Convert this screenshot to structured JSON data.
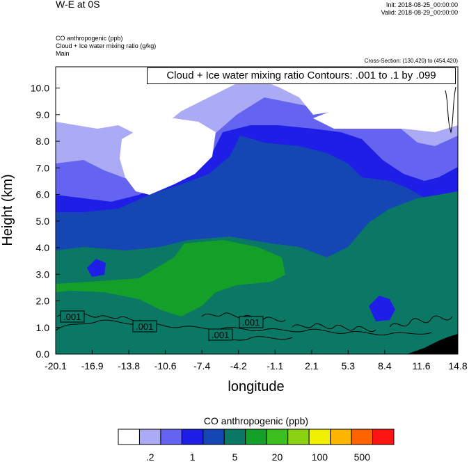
{
  "header": {
    "title": "W-E at 0S",
    "init": "Init: 2018-08-25_00:00:00",
    "valid": "Valid: 2018-08-29_00:00:00",
    "field1": "CO anthropogenic   (ppb)",
    "field2": "Cloud + Ice water mixing ratio   (g/kg)",
    "field3": "Main",
    "cross_section": "Cross-Section: (130,420) to (454,420)",
    "contour_label": "Cloud + Ice water mixing ratio Contours: .001 to .1 by .099"
  },
  "chart_data": {
    "type": "heatmap",
    "xlabel": "longitude",
    "ylabel": "Height (km)",
    "x_ticks": [
      "-20.1",
      "-16.9",
      "-13.8",
      "-10.6",
      "-7.4",
      "-4.2",
      "-1.1",
      "2.1",
      "5.3",
      "8.4",
      "11.6",
      "14.8"
    ],
    "y_ticks": [
      "0.0",
      "1.0",
      "2.0",
      "3.0",
      "4.0",
      "5.0",
      "6.0",
      "7.0",
      "8.0",
      "9.0",
      "10.0"
    ],
    "xlim": [
      -20.1,
      14.8
    ],
    "ylim": [
      0,
      10.8
    ],
    "contour_labels": [
      ".001",
      ".001",
      ".001",
      ".001"
    ],
    "colorbar": {
      "title": "CO anthropogenic  (ppb)",
      "colors": [
        "#ffffff",
        "#aaaaf5",
        "#6464f0",
        "#1e1ee6",
        "#1446b4",
        "#0a7864",
        "#14a028",
        "#3cbe1e",
        "#8cd214",
        "#f0f000",
        "#ffb400",
        "#ff6400",
        "#ff1414"
      ],
      "tick_labels": [
        ".2",
        "1",
        "5",
        "20",
        "100",
        "500"
      ]
    },
    "colors": {
      "white": "#ffffff",
      "light_blue": "#aaaaf5",
      "mid_blue": "#6464f0",
      "blue": "#1e1ee6",
      "dark_blue": "#1446b4",
      "teal": "#0a7864",
      "green": "#14a028",
      "terrain": "#000000"
    }
  }
}
